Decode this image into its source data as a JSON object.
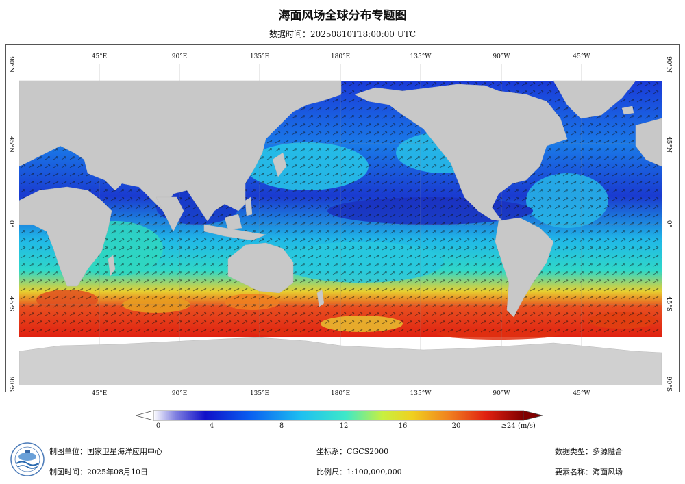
{
  "title": "海面风场全球分布专题图",
  "subtitle": {
    "label": "数据时间：",
    "value": "20250810T18:00:00 UTC"
  },
  "axes": {
    "lon_labels": [
      "45°E",
      "90°E",
      "135°E",
      "180°E",
      "135°W",
      "90°W",
      "45°W"
    ],
    "lat_labels": [
      "90°N",
      "45°N",
      "0°",
      "45°S",
      "90°S"
    ]
  },
  "colorbar": {
    "ticks": [
      "0",
      "4",
      "8",
      "12",
      "16",
      "20",
      "≥24"
    ],
    "unit": "(m/s)",
    "colors": [
      "#ffffff",
      "#8080e0",
      "#1010c8",
      "#0a5ef0",
      "#1ec0f0",
      "#3ee8c8",
      "#c8f040",
      "#f0d020",
      "#f08020",
      "#e02010",
      "#800000"
    ]
  },
  "info": {
    "producer_label": "制图单位：",
    "producer": "国家卫星海洋应用中心",
    "date_label": "制图时间：",
    "date": "2025年08月10日",
    "crs_label": "坐标系：",
    "crs": "CGCS2000",
    "scale_label": "比例尺：",
    "scale": "1:100,000,000",
    "dtype_label": "数据类型：",
    "dtype": "多源融合",
    "element_label": "要素名称：",
    "element": "海面风场"
  },
  "colors": {
    "land": "#c8c8c8",
    "antarctic": "#d8d8d8",
    "ocean_low": "#1a2fd0",
    "ocean_mid": "#18b0e8",
    "ocean_high": "#e03a10"
  }
}
